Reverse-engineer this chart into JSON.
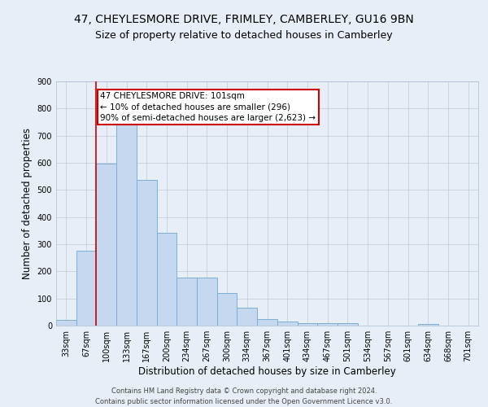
{
  "title_line1": "47, CHEYLESMORE DRIVE, FRIMLEY, CAMBERLEY, GU16 9BN",
  "title_line2": "Size of property relative to detached houses in Camberley",
  "xlabel": "Distribution of detached houses by size in Camberley",
  "ylabel": "Number of detached properties",
  "categories": [
    "33sqm",
    "67sqm",
    "100sqm",
    "133sqm",
    "167sqm",
    "200sqm",
    "234sqm",
    "267sqm",
    "300sqm",
    "334sqm",
    "367sqm",
    "401sqm",
    "434sqm",
    "467sqm",
    "501sqm",
    "534sqm",
    "567sqm",
    "601sqm",
    "634sqm",
    "668sqm",
    "701sqm"
  ],
  "values": [
    22,
    275,
    596,
    742,
    537,
    342,
    178,
    178,
    120,
    65,
    25,
    15,
    10,
    8,
    8,
    0,
    0,
    0,
    5,
    0,
    0
  ],
  "bar_color": "#c5d8f0",
  "bar_edge_color": "#7bafd4",
  "highlight_line_color": "#cc0000",
  "highlight_line_index": 2,
  "annotation_line1": "47 CHEYLESMORE DRIVE: 101sqm",
  "annotation_line2": "← 10% of detached houses are smaller (296)",
  "annotation_line3": "90% of semi-detached houses are larger (2,623) →",
  "annotation_edge_color": "#cc0000",
  "ylim": [
    0,
    900
  ],
  "yticks": [
    0,
    100,
    200,
    300,
    400,
    500,
    600,
    700,
    800,
    900
  ],
  "bg_color": "#e8eef8",
  "grid_color": "#c0c8d8",
  "footer_text": "Contains HM Land Registry data © Crown copyright and database right 2024.\nContains public sector information licensed under the Open Government Licence v3.0.",
  "title_fontsize": 10,
  "subtitle_fontsize": 9,
  "axis_label_fontsize": 8.5,
  "tick_fontsize": 7,
  "annotation_fontsize": 7.5,
  "footer_fontsize": 6
}
